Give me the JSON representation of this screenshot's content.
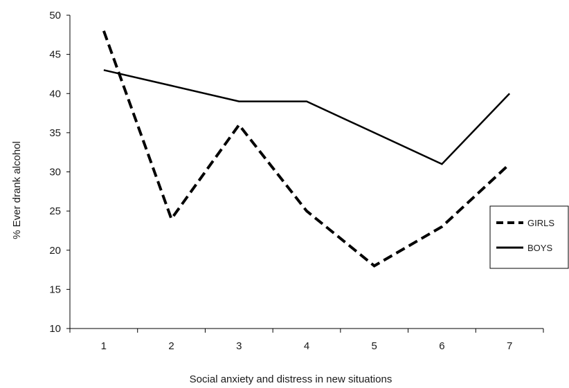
{
  "chart_data": {
    "type": "line",
    "xlabel": "Social anxiety and distress in new situations",
    "ylabel": "% Ever drank alcohol",
    "categories": [
      "1",
      "2",
      "3",
      "4",
      "5",
      "6",
      "7"
    ],
    "ylim": [
      10,
      50
    ],
    "yticks": [
      10,
      15,
      20,
      25,
      30,
      35,
      40,
      45,
      50
    ],
    "grid": false,
    "legend_position": "right",
    "series": [
      {
        "name": "GIRLS",
        "style": "dashed",
        "color": "#000000",
        "values": [
          48,
          24,
          36,
          25,
          18,
          23,
          31
        ]
      },
      {
        "name": "BOYS",
        "style": "solid",
        "color": "#000000",
        "values": [
          43,
          41,
          39,
          39,
          35,
          31,
          40
        ]
      }
    ]
  }
}
